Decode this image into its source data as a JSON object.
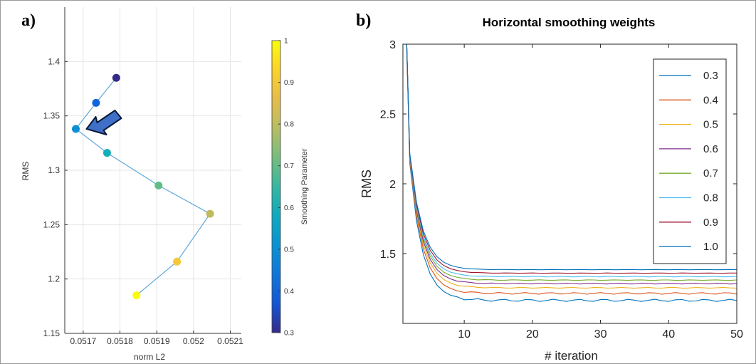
{
  "panels": {
    "a": {
      "label": "a)"
    },
    "b": {
      "label": "b)"
    }
  },
  "colors": {
    "left_line": "#5ea8d8",
    "arrow_fill": "#3f6fc6",
    "arrow_stroke": "#0a1a3a",
    "grid": "#e6e6e6",
    "axis": "#333333"
  },
  "chart_data": [
    {
      "type": "scatter",
      "xlabel": "norm L2",
      "ylabel": "RMS",
      "xlim": [
        0.05165,
        0.05213
      ],
      "ylim": [
        1.15,
        1.45
      ],
      "xticks": [
        0.0517,
        0.0518,
        0.0519,
        0.052,
        0.0521
      ],
      "xtick_labels": [
        "0.0517",
        "0.0518",
        "0.0519",
        "0.052",
        "0.0521"
      ],
      "yticks": [
        1.15,
        1.2,
        1.25,
        1.3,
        1.35,
        1.4
      ],
      "ytick_labels": [
        "1.15",
        "1.2",
        "1.25",
        "1.3",
        "1.35",
        "1.4"
      ],
      "grid": true,
      "colorbar": {
        "label": "Smoothing Parameter",
        "range": [
          0.3,
          1
        ],
        "ticks": [
          0.3,
          0.4,
          0.5,
          0.6,
          0.7,
          0.8,
          0.9,
          1
        ],
        "tick_labels": [
          "0.3",
          "0.4",
          "0.5",
          "0.6",
          "0.7",
          "0.8",
          "0.9",
          "1"
        ],
        "colormap": "parula"
      },
      "points": [
        {
          "x": 0.05179,
          "y": 1.385,
          "c": 0.3
        },
        {
          "x": 0.051735,
          "y": 1.362,
          "c": 0.4
        },
        {
          "x": 0.05168,
          "y": 1.338,
          "c": 0.5
        },
        {
          "x": 0.051765,
          "y": 1.316,
          "c": 0.6
        },
        {
          "x": 0.051905,
          "y": 1.286,
          "c": 0.7
        },
        {
          "x": 0.052045,
          "y": 1.26,
          "c": 0.8
        },
        {
          "x": 0.051955,
          "y": 1.216,
          "c": 0.9
        },
        {
          "x": 0.051845,
          "y": 1.185,
          "c": 1.0
        }
      ],
      "annotation": {
        "type": "arrow",
        "target_index": 2
      }
    },
    {
      "type": "line",
      "title": "Horizontal smoothing weights",
      "xlabel": "# iteration",
      "ylabel": "RMS",
      "xlim": [
        1,
        50
      ],
      "ylim": [
        1.0,
        3.0
      ],
      "xticks": [
        10,
        20,
        30,
        40,
        50
      ],
      "xtick_labels": [
        "10",
        "20",
        "30",
        "40",
        "50"
      ],
      "yticks": [
        1.5,
        2,
        2.5,
        3
      ],
      "ytick_labels": [
        "1.5",
        "2",
        "2.5",
        "3"
      ],
      "legend_position": "top-right",
      "series": [
        {
          "name": "0.3",
          "color": "#0072bd",
          "start": 4.0,
          "iter2": 2.15,
          "plateau": 1.165,
          "noise": 0.008
        },
        {
          "name": "0.4",
          "color": "#d95319",
          "start": 4.0,
          "iter2": 2.17,
          "plateau": 1.215,
          "noise": 0.006
        },
        {
          "name": "0.5",
          "color": "#edb120",
          "start": 4.0,
          "iter2": 2.18,
          "plateau": 1.255,
          "noise": 0.003
        },
        {
          "name": "0.6",
          "color": "#7e2f8e",
          "start": 4.0,
          "iter2": 2.19,
          "plateau": 1.285,
          "noise": 0.003
        },
        {
          "name": "0.7",
          "color": "#77ac30",
          "start": 4.0,
          "iter2": 2.2,
          "plateau": 1.31,
          "noise": 0.002
        },
        {
          "name": "0.8",
          "color": "#4dbeee",
          "start": 4.0,
          "iter2": 2.2,
          "plateau": 1.335,
          "noise": 0.002
        },
        {
          "name": "0.9",
          "color": "#a2142f",
          "start": 4.0,
          "iter2": 2.21,
          "plateau": 1.36,
          "noise": 0.001
        },
        {
          "name": "1.0",
          "color": "#0072bd",
          "start": 4.0,
          "iter2": 2.22,
          "plateau": 1.385,
          "noise": 0.001
        }
      ]
    }
  ]
}
